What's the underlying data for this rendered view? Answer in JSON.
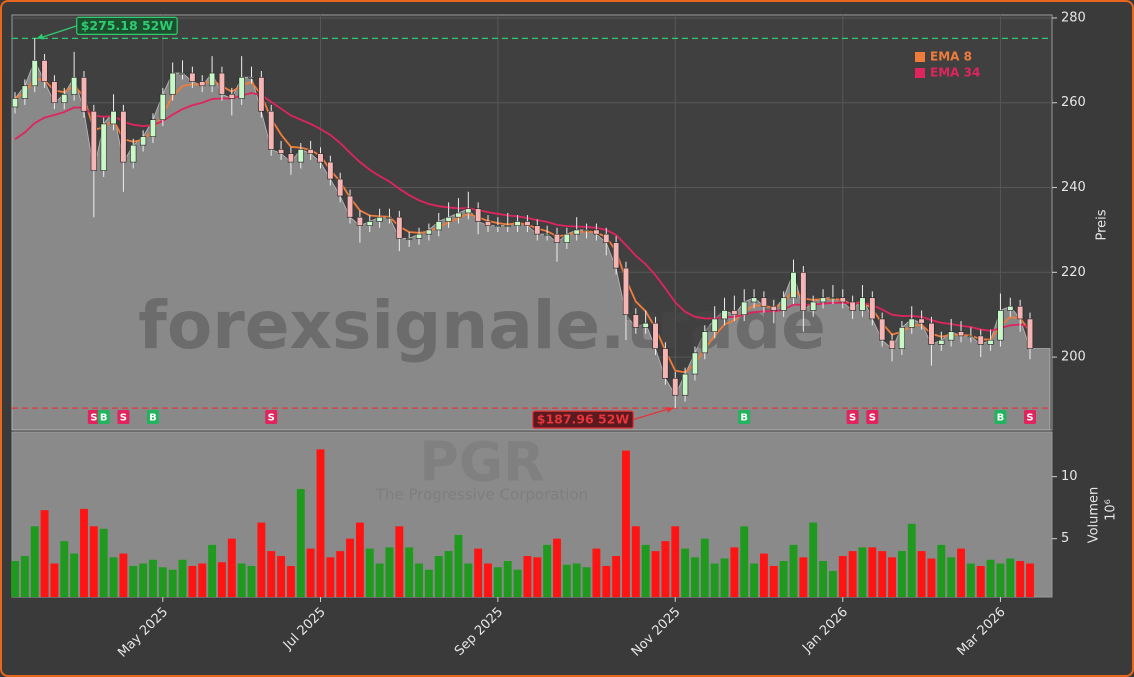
{
  "chart_data": [
    {
      "type": "candlestick",
      "ylabel": "Preis",
      "ylim": [
        182.8,
        280.7
      ],
      "yticks": [
        200,
        220,
        240,
        260,
        280
      ],
      "grid": true,
      "watermark": "forexsignale.trade",
      "area_color": "#898989",
      "candle_colors": {
        "up": "#c8f7c8",
        "down": "#f5b5b5"
      },
      "ohlc": [
        [
          259,
          262.5,
          257.5,
          261
        ],
        [
          261,
          265.5,
          259.5,
          264
        ],
        [
          264,
          275.18,
          262.5,
          270
        ],
        [
          270,
          271.5,
          263.5,
          265
        ],
        [
          265,
          266.5,
          258.5,
          260
        ],
        [
          260,
          263.5,
          258.5,
          262
        ],
        [
          262,
          272,
          260.5,
          266
        ],
        [
          266,
          267.5,
          256.5,
          258
        ],
        [
          258,
          259.5,
          233,
          244
        ],
        [
          244,
          256.5,
          242.5,
          255
        ],
        [
          255,
          262,
          253.5,
          258
        ],
        [
          258,
          259.5,
          239,
          246
        ],
        [
          246,
          251.5,
          244.5,
          250
        ],
        [
          250,
          253.5,
          248.5,
          252
        ],
        [
          252,
          257.5,
          250.5,
          256
        ],
        [
          256,
          263.5,
          254.5,
          262
        ],
        [
          262,
          269.5,
          260.5,
          267
        ],
        [
          267,
          270,
          265.5,
          267
        ],
        [
          267,
          268.5,
          263.5,
          265
        ],
        [
          265,
          266.5,
          262.5,
          264
        ],
        [
          264,
          271,
          262.5,
          267
        ],
        [
          267,
          268.5,
          260.5,
          262
        ],
        [
          262,
          263.5,
          257,
          261
        ],
        [
          261,
          271,
          259.5,
          266
        ],
        [
          266,
          268.5,
          264.5,
          266
        ],
        [
          266,
          267.5,
          256.5,
          258
        ],
        [
          258,
          259.5,
          247.5,
          249
        ],
        [
          249,
          251,
          246.5,
          248
        ],
        [
          248,
          249.5,
          243,
          246
        ],
        [
          246,
          250.5,
          244.5,
          249
        ],
        [
          249,
          251,
          246.5,
          248
        ],
        [
          248,
          249.5,
          244.5,
          246
        ],
        [
          246,
          247.5,
          240.5,
          242
        ],
        [
          242,
          243.5,
          236.5,
          238
        ],
        [
          238,
          239.5,
          231.5,
          233
        ],
        [
          233,
          234.5,
          227,
          231
        ],
        [
          231,
          233.5,
          229.5,
          232
        ],
        [
          232,
          235,
          230.5,
          233
        ],
        [
          233,
          235,
          231.5,
          233
        ],
        [
          233,
          234.5,
          225,
          228
        ],
        [
          228,
          229.5,
          226,
          228
        ],
        [
          228,
          230.5,
          226.5,
          229
        ],
        [
          229,
          231.5,
          227.5,
          230
        ],
        [
          230,
          234,
          228.5,
          232
        ],
        [
          232,
          236.5,
          230.5,
          233
        ],
        [
          233,
          237.5,
          231.5,
          234
        ],
        [
          234,
          239,
          232.5,
          235
        ],
        [
          235,
          236.5,
          229,
          232
        ],
        [
          232,
          233.5,
          229.5,
          231
        ],
        [
          231,
          233,
          229.5,
          231
        ],
        [
          231,
          234,
          229.5,
          231
        ],
        [
          231,
          233.5,
          229.5,
          232
        ],
        [
          232,
          233.5,
          229.5,
          231
        ],
        [
          231,
          232.5,
          227.5,
          229
        ],
        [
          229,
          231,
          227.5,
          229
        ],
        [
          229,
          230.5,
          222.5,
          227
        ],
        [
          227,
          230.5,
          225.5,
          229
        ],
        [
          229,
          233,
          227.5,
          230
        ],
        [
          230,
          231.5,
          228,
          230
        ],
        [
          230,
          231.5,
          227.5,
          229
        ],
        [
          229,
          230.5,
          224,
          227
        ],
        [
          227,
          228.5,
          219.5,
          221
        ],
        [
          221,
          222.5,
          204,
          210
        ],
        [
          210,
          211.5,
          205.5,
          207
        ],
        [
          207,
          211,
          205.5,
          208
        ],
        [
          208,
          209.5,
          200.5,
          202
        ],
        [
          202,
          203.5,
          193.5,
          195
        ],
        [
          195,
          196.5,
          187.96,
          191
        ],
        [
          191,
          197.5,
          189.5,
          196
        ],
        [
          196,
          202.5,
          194.5,
          201
        ],
        [
          201,
          207.5,
          199.5,
          206
        ],
        [
          206,
          212,
          204.5,
          209
        ],
        [
          209,
          214,
          207.5,
          211
        ],
        [
          211,
          214.5,
          208.5,
          210
        ],
        [
          210,
          216,
          208.5,
          213
        ],
        [
          213,
          216,
          211.5,
          214
        ],
        [
          214,
          215.5,
          210.5,
          212
        ],
        [
          212,
          213.5,
          208,
          211
        ],
        [
          211,
          215.5,
          209.5,
          214
        ],
        [
          214,
          223,
          212.5,
          220
        ],
        [
          220,
          221.5,
          206,
          211
        ],
        [
          211,
          214.5,
          209.5,
          213
        ],
        [
          213,
          216,
          211.5,
          214
        ],
        [
          214,
          217,
          212.5,
          214
        ],
        [
          214,
          216,
          211.5,
          213
        ],
        [
          213,
          214.5,
          209,
          211
        ],
        [
          211,
          217,
          209.5,
          214
        ],
        [
          214,
          215.5,
          207.5,
          209
        ],
        [
          209,
          210.5,
          202.5,
          204
        ],
        [
          204,
          205.5,
          199,
          202
        ],
        [
          202,
          208.5,
          200.5,
          207
        ],
        [
          207,
          212,
          205.5,
          209
        ],
        [
          209,
          211,
          206.5,
          208
        ],
        [
          208,
          209.5,
          198,
          203
        ],
        [
          203,
          206,
          201.5,
          204
        ],
        [
          204,
          209,
          202.5,
          206
        ],
        [
          206,
          208.5,
          203.5,
          205
        ],
        [
          205,
          207,
          203.5,
          205
        ],
        [
          205,
          206.5,
          200,
          203
        ],
        [
          203,
          206.5,
          201.5,
          204
        ],
        [
          204,
          215,
          202.5,
          211
        ],
        [
          211,
          214,
          209.5,
          212
        ],
        [
          212,
          213.5,
          206,
          209
        ],
        [
          209,
          210.5,
          199.5,
          202
        ]
      ],
      "series": [
        {
          "name": "EMA 8",
          "color": "#f07c3c",
          "values": [
            261,
            262.4,
            265.6,
            265.3,
            262.9,
            262.5,
            264.1,
            261.4,
            253.6,
            254.2,
            255.9,
            251.4,
            250.8,
            251.3,
            253.4,
            257.3,
            261.6,
            263.9,
            264.4,
            264.2,
            265.4,
            263.9,
            262.6,
            264.1,
            264.9,
            261.8,
            256.2,
            252.5,
            249.6,
            249.4,
            248.8,
            247.5,
            244.1,
            241.4,
            237.6,
            234.6,
            233.4,
            233.2,
            233.1,
            230.8,
            229.5,
            229.3,
            229.6,
            230.7,
            231.8,
            232.8,
            233.8,
            233.0,
            232.1,
            231.6,
            231.3,
            231.6,
            231.3,
            230.3,
            229.7,
            228.5,
            228.8,
            229.4,
            229.7,
            229.4,
            228.3,
            225.0,
            218.3,
            213.1,
            210.8,
            206.8,
            201.5,
            196.8,
            196.4,
            198.5,
            201.9,
            205.1,
            207.7,
            208.7,
            210.7,
            212.2,
            212.1,
            211.6,
            212.7,
            216.0,
            213.8,
            213.5,
            213.7,
            213.8,
            213.4,
            212.4,
            213.1,
            211.3,
            208.0,
            205.3,
            206.0,
            207.4,
            207.6,
            205.5,
            204.8,
            205.3,
            205.2,
            205.1,
            204.2,
            204.1,
            207.4,
            209.4,
            209.2,
            206.0
          ]
        },
        {
          "name": "EMA 34",
          "color": "#e0245e",
          "values": [
            251.4,
            253.0,
            255.2,
            256.5,
            257.1,
            257.8,
            258.9,
            258.8,
            257.0,
            256.7,
            256.9,
            255.5,
            254.8,
            254.5,
            254.7,
            255.7,
            257.2,
            258.5,
            259.4,
            260.0,
            260.9,
            261.0,
            261.0,
            261.7,
            262.3,
            261.8,
            260.2,
            258.6,
            257.0,
            256.0,
            255.0,
            253.8,
            252.4,
            250.5,
            248.2,
            246.0,
            244.2,
            242.7,
            241.4,
            239.7,
            238.2,
            237.0,
            236.1,
            235.6,
            235.3,
            235.1,
            235.1,
            234.7,
            234.2,
            233.8,
            233.4,
            233.2,
            232.8,
            232.3,
            231.9,
            231.2,
            230.9,
            230.8,
            230.7,
            230.5,
            230.0,
            228.8,
            226.4,
            223.9,
            221.9,
            219.3,
            216.2,
            212.9,
            210.7,
            209.5,
            209.1,
            209.1,
            209.4,
            209.5,
            210.0,
            210.6,
            210.8,
            210.8,
            211.2,
            212.4,
            212.3,
            212.4,
            212.6,
            212.8,
            212.8,
            212.6,
            212.8,
            212.3,
            211.2,
            210.0,
            209.7,
            209.7,
            209.5,
            208.7,
            208.1,
            207.8,
            207.4,
            207.1,
            206.5,
            206.2,
            206.8,
            207.5,
            207.7,
            207.0
          ]
        }
      ],
      "signals": [
        null,
        null,
        null,
        null,
        null,
        null,
        null,
        null,
        "S",
        "B",
        null,
        "S",
        null,
        null,
        "B",
        null,
        null,
        null,
        null,
        null,
        null,
        null,
        null,
        null,
        null,
        null,
        "S",
        null,
        null,
        null,
        null,
        null,
        null,
        null,
        null,
        null,
        null,
        null,
        null,
        null,
        null,
        null,
        null,
        null,
        null,
        null,
        null,
        null,
        null,
        null,
        null,
        null,
        null,
        null,
        null,
        null,
        null,
        null,
        null,
        null,
        null,
        null,
        null,
        null,
        null,
        null,
        null,
        null,
        null,
        null,
        null,
        null,
        null,
        null,
        "B",
        null,
        null,
        null,
        null,
        null,
        null,
        null,
        null,
        null,
        null,
        "S",
        null,
        "S",
        null,
        null,
        null,
        null,
        null,
        null,
        null,
        null,
        null,
        null,
        null,
        null,
        "B",
        null,
        null,
        "S"
      ],
      "signal_colors": {
        "S": "#e0245e",
        "B": "#22b35e"
      },
      "annotations": [
        {
          "text": "$275.18 52W",
          "value": 275.18,
          "color": "#2ecc71"
        },
        {
          "text": "$187.96 52W",
          "value": 187.96,
          "color": "#e8343a"
        }
      ]
    },
    {
      "type": "bar",
      "ylabel": "Volumen",
      "y_unit": "10⁶",
      "ylim": [
        0.3,
        13.6
      ],
      "yticks": [
        5,
        10
      ],
      "watermark": [
        "PGR",
        "The Progressive Corporation"
      ],
      "bar_colors": {
        "up": "#1f9a1f",
        "down": "#ff1414"
      },
      "categories": [
        null,
        null,
        null,
        null,
        null,
        null,
        null,
        null,
        null,
        null,
        null,
        null,
        null,
        null,
        null,
        "May 2025",
        null,
        null,
        null,
        null,
        null,
        null,
        null,
        null,
        null,
        null,
        null,
        null,
        null,
        null,
        null,
        "Jul 2025",
        null,
        null,
        null,
        null,
        null,
        null,
        null,
        null,
        null,
        null,
        null,
        null,
        null,
        null,
        null,
        null,
        null,
        "Sep 2025",
        null,
        null,
        null,
        null,
        null,
        null,
        null,
        null,
        null,
        null,
        null,
        null,
        null,
        null,
        null,
        null,
        null,
        "Nov 2025",
        null,
        null,
        null,
        null,
        null,
        null,
        null,
        null,
        null,
        null,
        null,
        null,
        null,
        null,
        null,
        null,
        "Jan 2026",
        null,
        null,
        null,
        null,
        null,
        null,
        null,
        null,
        null,
        null,
        null,
        null,
        null,
        null,
        null,
        "Mar 2026",
        null,
        null,
        null
      ],
      "values": [
        3.2,
        3.6,
        6.0,
        7.3,
        3.0,
        4.8,
        3.8,
        7.4,
        6.0,
        5.8,
        3.5,
        3.8,
        2.8,
        3.0,
        3.3,
        2.7,
        2.5,
        3.3,
        2.8,
        3.0,
        4.5,
        3.1,
        5.0,
        3.0,
        2.8,
        6.3,
        4.0,
        3.6,
        2.8,
        9.0,
        4.2,
        12.2,
        3.5,
        4.0,
        5.0,
        6.3,
        4.2,
        3.0,
        4.3,
        6.0,
        4.3,
        3.0,
        2.5,
        3.6,
        4.0,
        5.3,
        3.0,
        4.2,
        3.0,
        2.7,
        3.2,
        2.5,
        3.6,
        3.5,
        4.5,
        5.0,
        2.9,
        3.0,
        2.7,
        4.2,
        2.8,
        3.6,
        12.1,
        6.0,
        4.5,
        4.0,
        4.8,
        6.0,
        4.2,
        3.5,
        5.0,
        3.0,
        3.4,
        4.3,
        6.0,
        3.0,
        3.8,
        2.8,
        3.2,
        4.5,
        3.5,
        6.3,
        3.2,
        2.4,
        3.6,
        4.0,
        4.3,
        4.3,
        4.0,
        3.5,
        4.0,
        6.2,
        4.0,
        3.4,
        4.5,
        3.5,
        4.2,
        3.0,
        2.8,
        3.3,
        3.0,
        3.4,
        3.2,
        3.0
      ]
    }
  ]
}
